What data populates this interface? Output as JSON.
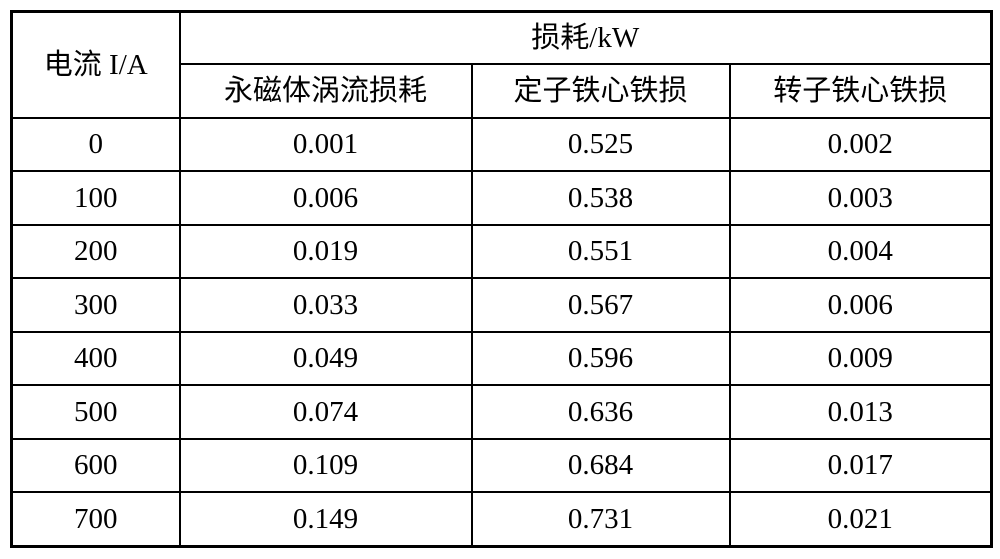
{
  "table": {
    "corner_header": "电流 I/A",
    "group_header": "损耗/kW",
    "sub_headers": [
      "永磁体涡流损耗",
      "定子铁心铁损",
      "转子铁心铁损"
    ],
    "rows": [
      {
        "current": "0",
        "values": [
          "0.001",
          "0.525",
          "0.002"
        ]
      },
      {
        "current": "100",
        "values": [
          "0.006",
          "0.538",
          "0.003"
        ]
      },
      {
        "current": "200",
        "values": [
          "0.019",
          "0.551",
          "0.004"
        ]
      },
      {
        "current": "300",
        "values": [
          "0.033",
          "0.567",
          "0.006"
        ]
      },
      {
        "current": "400",
        "values": [
          "0.049",
          "0.596",
          "0.009"
        ]
      },
      {
        "current": "500",
        "values": [
          "0.074",
          "0.636",
          "0.013"
        ]
      },
      {
        "current": "600",
        "values": [
          "0.109",
          "0.684",
          "0.017"
        ]
      },
      {
        "current": "700",
        "values": [
          "0.149",
          "0.731",
          "0.021"
        ]
      }
    ],
    "colors": {
      "border": "#000000",
      "text": "#000000",
      "background": "#ffffff"
    }
  },
  "chart_data": {
    "type": "table",
    "title": "损耗/kW",
    "xlabel": "电流 I/A",
    "categories": [
      0,
      100,
      200,
      300,
      400,
      500,
      600,
      700
    ],
    "series": [
      {
        "name": "永磁体涡流损耗",
        "values": [
          0.001,
          0.006,
          0.019,
          0.033,
          0.049,
          0.074,
          0.109,
          0.149
        ]
      },
      {
        "name": "定子铁心铁损",
        "values": [
          0.525,
          0.538,
          0.551,
          0.567,
          0.596,
          0.636,
          0.684,
          0.731
        ]
      },
      {
        "name": "转子铁心铁损",
        "values": [
          0.002,
          0.003,
          0.004,
          0.006,
          0.009,
          0.013,
          0.017,
          0.021
        ]
      }
    ],
    "units": "kW",
    "grid": true,
    "legend_position": "header-row"
  }
}
